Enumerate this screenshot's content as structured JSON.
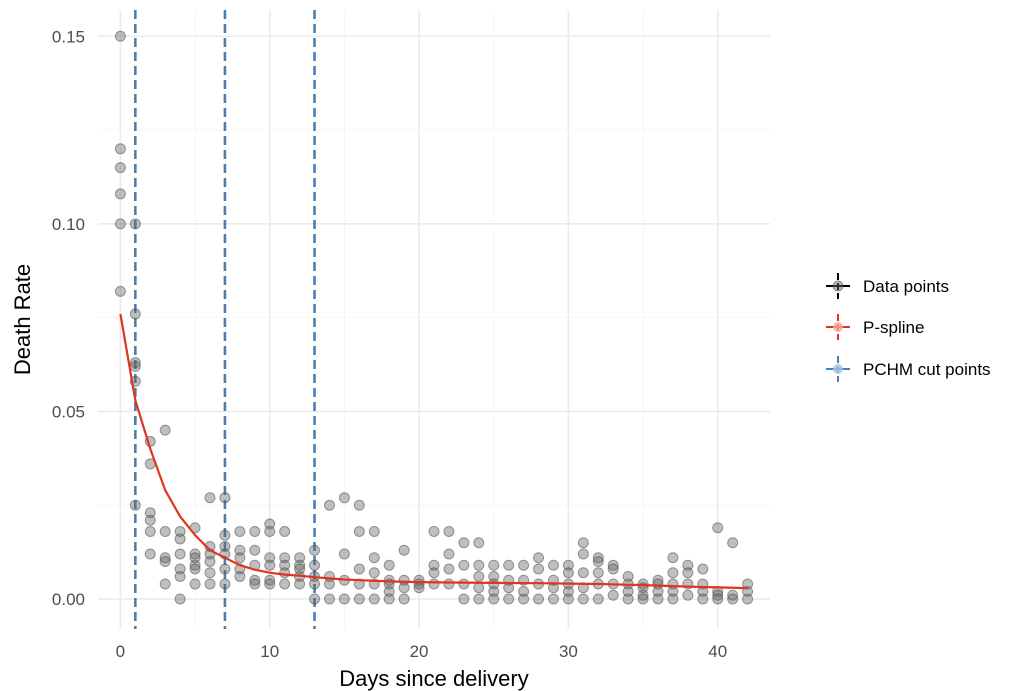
{
  "chart_data": {
    "type": "scatter",
    "title": "",
    "xlabel": "Days since delivery",
    "ylabel": "Death Rate",
    "xlim": [
      -1.5,
      43.5
    ],
    "ylim": [
      -0.008,
      0.157
    ],
    "xticks": [
      0,
      10,
      20,
      30,
      40
    ],
    "yticks": [
      0,
      0.05,
      0.1,
      0.15
    ],
    "xtick_labels": [
      "0",
      "10",
      "20",
      "30",
      "40"
    ],
    "ytick_labels": [
      "0.00",
      "0.05",
      "0.10",
      "0.15"
    ],
    "grid": true,
    "legend_position": "right",
    "legend": [
      {
        "label": "Data points",
        "color": "#000000"
      },
      {
        "label": "P-spline",
        "color": "#e0341f"
      },
      {
        "label": "PCHM cut points",
        "color": "#4b7fb0"
      }
    ],
    "colors": {
      "points": "#666666",
      "spline": "#e0341f",
      "cut_points": "#4b7fb0",
      "grid": "#ebebeb"
    },
    "cut_points": [
      1,
      7,
      13
    ],
    "spline": {
      "x": [
        0,
        1,
        2,
        3,
        4,
        5,
        6,
        7,
        8,
        9,
        10,
        11,
        12,
        13,
        14,
        15,
        16,
        18,
        20,
        22,
        25,
        28,
        30,
        32,
        35,
        38,
        40,
        42
      ],
      "y": [
        0.076,
        0.053,
        0.04,
        0.029,
        0.022,
        0.017,
        0.013,
        0.011,
        0.009,
        0.0078,
        0.007,
        0.0065,
        0.0062,
        0.0058,
        0.0055,
        0.0052,
        0.005,
        0.0047,
        0.0045,
        0.0044,
        0.0043,
        0.0042,
        0.0041,
        0.004,
        0.0037,
        0.0033,
        0.0031,
        0.0029
      ]
    },
    "points": [
      [
        0,
        0.15
      ],
      [
        0,
        0.12
      ],
      [
        0,
        0.115
      ],
      [
        0,
        0.108
      ],
      [
        0,
        0.1
      ],
      [
        0,
        0.082
      ],
      [
        1,
        0.1
      ],
      [
        1,
        0.076
      ],
      [
        1,
        0.062
      ],
      [
        1,
        0.063
      ],
      [
        1,
        0.058
      ],
      [
        1,
        0.025
      ],
      [
        2,
        0.042
      ],
      [
        2,
        0.036
      ],
      [
        2,
        0.023
      ],
      [
        2,
        0.021
      ],
      [
        2,
        0.018
      ],
      [
        2,
        0.012
      ],
      [
        3,
        0.045
      ],
      [
        3,
        0.018
      ],
      [
        3,
        0.011
      ],
      [
        3,
        0.01
      ],
      [
        3,
        0.004
      ],
      [
        4,
        0.018
      ],
      [
        4,
        0.016
      ],
      [
        4,
        0.012
      ],
      [
        4,
        0.008
      ],
      [
        4,
        0.006
      ],
      [
        4,
        0.0
      ],
      [
        5,
        0.019
      ],
      [
        5,
        0.012
      ],
      [
        5,
        0.011
      ],
      [
        5,
        0.009
      ],
      [
        5,
        0.008
      ],
      [
        5,
        0.004
      ],
      [
        6,
        0.027
      ],
      [
        6,
        0.014
      ],
      [
        6,
        0.012
      ],
      [
        6,
        0.01
      ],
      [
        6,
        0.007
      ],
      [
        6,
        0.004
      ],
      [
        7,
        0.027
      ],
      [
        7,
        0.017
      ],
      [
        7,
        0.014
      ],
      [
        7,
        0.012
      ],
      [
        7,
        0.008
      ],
      [
        7,
        0.004
      ],
      [
        8,
        0.018
      ],
      [
        8,
        0.013
      ],
      [
        8,
        0.011
      ],
      [
        8,
        0.008
      ],
      [
        8,
        0.006
      ],
      [
        9,
        0.018
      ],
      [
        9,
        0.013
      ],
      [
        9,
        0.009
      ],
      [
        9,
        0.005
      ],
      [
        9,
        0.004
      ],
      [
        10,
        0.02
      ],
      [
        10,
        0.018
      ],
      [
        10,
        0.011
      ],
      [
        10,
        0.009
      ],
      [
        10,
        0.005
      ],
      [
        10,
        0.004
      ],
      [
        11,
        0.018
      ],
      [
        11,
        0.011
      ],
      [
        11,
        0.009
      ],
      [
        11,
        0.007
      ],
      [
        11,
        0.004
      ],
      [
        12,
        0.011
      ],
      [
        12,
        0.009
      ],
      [
        12,
        0.008
      ],
      [
        12,
        0.006
      ],
      [
        12,
        0.004
      ],
      [
        13,
        0.013
      ],
      [
        13,
        0.009
      ],
      [
        13,
        0.006
      ],
      [
        13,
        0.004
      ],
      [
        13,
        0.0
      ],
      [
        14,
        0.025
      ],
      [
        14,
        0.006
      ],
      [
        14,
        0.004
      ],
      [
        14,
        0.0
      ],
      [
        15,
        0.027
      ],
      [
        15,
        0.012
      ],
      [
        15,
        0.005
      ],
      [
        15,
        0.0
      ],
      [
        16,
        0.025
      ],
      [
        16,
        0.018
      ],
      [
        16,
        0.008
      ],
      [
        16,
        0.004
      ],
      [
        16,
        0.0
      ],
      [
        17,
        0.018
      ],
      [
        17,
        0.011
      ],
      [
        17,
        0.007
      ],
      [
        17,
        0.004
      ],
      [
        17,
        0.0
      ],
      [
        18,
        0.009
      ],
      [
        18,
        0.005
      ],
      [
        18,
        0.004
      ],
      [
        18,
        0.002
      ],
      [
        18,
        0.0
      ],
      [
        19,
        0.013
      ],
      [
        19,
        0.005
      ],
      [
        19,
        0.003
      ],
      [
        19,
        0.0
      ],
      [
        20,
        0.005
      ],
      [
        20,
        0.004
      ],
      [
        20,
        0.003
      ],
      [
        21,
        0.018
      ],
      [
        21,
        0.009
      ],
      [
        21,
        0.007
      ],
      [
        21,
        0.004
      ],
      [
        22,
        0.018
      ],
      [
        22,
        0.012
      ],
      [
        22,
        0.008
      ],
      [
        22,
        0.004
      ],
      [
        23,
        0.015
      ],
      [
        23,
        0.009
      ],
      [
        23,
        0.004
      ],
      [
        23,
        0.0
      ],
      [
        24,
        0.015
      ],
      [
        24,
        0.009
      ],
      [
        24,
        0.006
      ],
      [
        24,
        0.003
      ],
      [
        24,
        0.0
      ],
      [
        25,
        0.009
      ],
      [
        25,
        0.006
      ],
      [
        25,
        0.004
      ],
      [
        25,
        0.002
      ],
      [
        25,
        0.0
      ],
      [
        26,
        0.009
      ],
      [
        26,
        0.005
      ],
      [
        26,
        0.003
      ],
      [
        26,
        0.0
      ],
      [
        27,
        0.009
      ],
      [
        27,
        0.005
      ],
      [
        27,
        0.002
      ],
      [
        27,
        0.0
      ],
      [
        28,
        0.011
      ],
      [
        28,
        0.008
      ],
      [
        28,
        0.004
      ],
      [
        28,
        0.0
      ],
      [
        29,
        0.009
      ],
      [
        29,
        0.005
      ],
      [
        29,
        0.003
      ],
      [
        29,
        0.0
      ],
      [
        30,
        0.009
      ],
      [
        30,
        0.007
      ],
      [
        30,
        0.004
      ],
      [
        30,
        0.002
      ],
      [
        30,
        0.0
      ],
      [
        31,
        0.015
      ],
      [
        31,
        0.012
      ],
      [
        31,
        0.007
      ],
      [
        31,
        0.003
      ],
      [
        31,
        0.0
      ],
      [
        32,
        0.011
      ],
      [
        32,
        0.01
      ],
      [
        32,
        0.007
      ],
      [
        32,
        0.004
      ],
      [
        32,
        0.0
      ],
      [
        33,
        0.009
      ],
      [
        33,
        0.008
      ],
      [
        33,
        0.004
      ],
      [
        33,
        0.001
      ],
      [
        34,
        0.006
      ],
      [
        34,
        0.004
      ],
      [
        34,
        0.002
      ],
      [
        34,
        0.0
      ],
      [
        35,
        0.004
      ],
      [
        35,
        0.003
      ],
      [
        35,
        0.001
      ],
      [
        35,
        0.0
      ],
      [
        36,
        0.005
      ],
      [
        36,
        0.004
      ],
      [
        36,
        0.002
      ],
      [
        36,
        0.0
      ],
      [
        37,
        0.011
      ],
      [
        37,
        0.007
      ],
      [
        37,
        0.004
      ],
      [
        37,
        0.002
      ],
      [
        37,
        0.0
      ],
      [
        38,
        0.009
      ],
      [
        38,
        0.007
      ],
      [
        38,
        0.004
      ],
      [
        38,
        0.001
      ],
      [
        39,
        0.008
      ],
      [
        39,
        0.004
      ],
      [
        39,
        0.002
      ],
      [
        39,
        0.0
      ],
      [
        40,
        0.019
      ],
      [
        40,
        0.002
      ],
      [
        40,
        0.001
      ],
      [
        40,
        0.0
      ],
      [
        41,
        0.015
      ],
      [
        41,
        0.001
      ],
      [
        41,
        0.0
      ],
      [
        42,
        0.004
      ],
      [
        42,
        0.002
      ],
      [
        42,
        0.0
      ]
    ]
  }
}
